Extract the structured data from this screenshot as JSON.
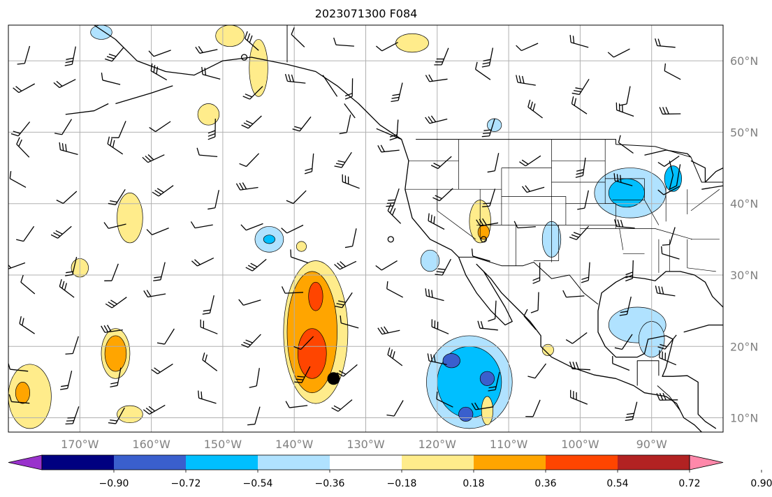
{
  "title": "2023071300 F084",
  "map": {
    "lon_range": [
      -180,
      -80
    ],
    "lat_range": [
      8,
      65
    ],
    "gridlines": true,
    "lon_ticks": [
      {
        "value": -170,
        "label": "170°W"
      },
      {
        "value": -160,
        "label": "160°W"
      },
      {
        "value": -150,
        "label": "150°W"
      },
      {
        "value": -140,
        "label": "140°W"
      },
      {
        "value": -130,
        "label": "130°W"
      },
      {
        "value": -120,
        "label": "120°W"
      },
      {
        "value": -110,
        "label": "110°W"
      },
      {
        "value": -100,
        "label": "100°W"
      },
      {
        "value": -90,
        "label": "90°W"
      }
    ],
    "lat_ticks": [
      {
        "value": 10,
        "label": "10°N"
      },
      {
        "value": 20,
        "label": "20°N"
      },
      {
        "value": 30,
        "label": "30°N"
      },
      {
        "value": 40,
        "label": "40°N"
      },
      {
        "value": 50,
        "label": "50°N"
      },
      {
        "value": 60,
        "label": "60°N"
      }
    ],
    "marker": {
      "lon": -134.5,
      "lat": 15.5,
      "color": "#000000"
    }
  },
  "colorbar": {
    "labels": [
      "−0.90",
      "−0.72",
      "−0.54",
      "−0.36",
      "−0.18",
      "0.18",
      "0.36",
      "0.54",
      "0.72",
      "0.90"
    ],
    "colors": [
      "#9932cc",
      "#000080",
      "#3a5fcd",
      "#00bfff",
      "#b0e2ff",
      "#ffffff",
      "#ffec8b",
      "#ffa500",
      "#ff4500",
      "#b22222",
      "#ff88aa"
    ]
  },
  "fields": [
    {
      "lon": -137,
      "lat": 22,
      "rx": 4.5,
      "ry": 10,
      "level": 6
    },
    {
      "lon": -137.5,
      "lat": 22,
      "rx": 3.5,
      "ry": 8.5,
      "level": 7
    },
    {
      "lon": -137.5,
      "lat": 19,
      "rx": 2,
      "ry": 3.5,
      "level": 8
    },
    {
      "lon": -137,
      "lat": 27,
      "rx": 1,
      "ry": 2,
      "level": 8
    },
    {
      "lon": -115.5,
      "lat": 15,
      "rx": 6,
      "ry": 6.5,
      "level": 4
    },
    {
      "lon": -115.5,
      "lat": 15,
      "rx": 4.5,
      "ry": 5,
      "level": 3
    },
    {
      "lon": -118,
      "lat": 18,
      "rx": 1.2,
      "ry": 1,
      "level": 2
    },
    {
      "lon": -113,
      "lat": 15.5,
      "rx": 1,
      "ry": 1,
      "level": 2
    },
    {
      "lon": -116,
      "lat": 10.5,
      "rx": 1,
      "ry": 1,
      "level": 2
    },
    {
      "lon": -93,
      "lat": 41.5,
      "rx": 5,
      "ry": 3.5,
      "level": 4
    },
    {
      "lon": -93.5,
      "lat": 41.5,
      "rx": 2.5,
      "ry": 2,
      "level": 3
    },
    {
      "lon": -87,
      "lat": 43.5,
      "rx": 1.2,
      "ry": 1.8,
      "level": 3
    },
    {
      "lon": -92,
      "lat": 23,
      "rx": 4,
      "ry": 2.5,
      "level": 4
    },
    {
      "lon": -90,
      "lat": 21,
      "rx": 1.8,
      "ry": 2.5,
      "level": 4
    },
    {
      "lon": -165,
      "lat": 19,
      "rx": 2,
      "ry": 3.5,
      "level": 6
    },
    {
      "lon": -165,
      "lat": 19,
      "rx": 1.5,
      "ry": 2.5,
      "level": 7
    },
    {
      "lon": -177,
      "lat": 13,
      "rx": 3,
      "ry": 4.5,
      "level": 6
    },
    {
      "lon": -178,
      "lat": 13.5,
      "rx": 1,
      "ry": 1.5,
      "level": 7
    },
    {
      "lon": -163,
      "lat": 38,
      "rx": 1.8,
      "ry": 3.5,
      "level": 6
    },
    {
      "lon": -170,
      "lat": 31,
      "rx": 1.2,
      "ry": 1.3,
      "level": 6
    },
    {
      "lon": -163,
      "lat": 10.5,
      "rx": 1.8,
      "ry": 1.2,
      "level": 6
    },
    {
      "lon": -145,
      "lat": 59,
      "rx": 1.3,
      "ry": 4,
      "level": 6
    },
    {
      "lon": -152,
      "lat": 52.5,
      "rx": 1.5,
      "ry": 1.5,
      "level": 6
    },
    {
      "lon": -149,
      "lat": 63.5,
      "rx": 2,
      "ry": 1.5,
      "level": 6
    },
    {
      "lon": -114,
      "lat": 37.5,
      "rx": 1.5,
      "ry": 3,
      "level": 6
    },
    {
      "lon": -113.5,
      "lat": 36,
      "rx": 0.8,
      "ry": 1,
      "level": 7
    },
    {
      "lon": -104,
      "lat": 35,
      "rx": 1.3,
      "ry": 2.5,
      "level": 4
    },
    {
      "lon": -143.5,
      "lat": 35,
      "rx": 2,
      "ry": 1.8,
      "level": 4
    },
    {
      "lon": -143.5,
      "lat": 35,
      "rx": 0.8,
      "ry": 0.6,
      "level": 3
    },
    {
      "lon": -121,
      "lat": 32,
      "rx": 1.3,
      "ry": 1.5,
      "level": 4
    },
    {
      "lon": -123.5,
      "lat": 62.5,
      "rx": 2.3,
      "ry": 1.3,
      "level": 6
    },
    {
      "lon": -112,
      "lat": 51,
      "rx": 1,
      "ry": 0.9,
      "level": 4
    },
    {
      "lon": -104.5,
      "lat": 19.5,
      "rx": 0.8,
      "ry": 0.8,
      "level": 6
    },
    {
      "lon": -113,
      "lat": 11,
      "rx": 0.8,
      "ry": 2,
      "level": 6
    },
    {
      "lon": -139,
      "lat": 34,
      "rx": 0.7,
      "ry": 0.7,
      "level": 6
    },
    {
      "lon": -167,
      "lat": 64,
      "rx": 1.5,
      "ry": 1,
      "level": 4
    }
  ],
  "coast": [
    [
      [
        -168,
        65
      ],
      [
        -165,
        63
      ],
      [
        -162,
        60
      ],
      [
        -158,
        58.5
      ],
      [
        -154,
        58
      ],
      [
        -150,
        60
      ],
      [
        -146,
        60.5
      ],
      [
        -141,
        59.5
      ],
      [
        -137,
        58.5
      ],
      [
        -134,
        56.5
      ],
      [
        -131,
        54
      ],
      [
        -128,
        51
      ],
      [
        -125,
        49
      ],
      [
        -124,
        46
      ],
      [
        -124.5,
        42
      ],
      [
        -123.5,
        38
      ],
      [
        -121,
        35
      ],
      [
        -118,
        33.5
      ],
      [
        -117,
        32.5
      ],
      [
        -116,
        30
      ],
      [
        -114.5,
        27.5
      ],
      [
        -112.5,
        25
      ],
      [
        -110.5,
        23
      ],
      [
        -109.5,
        23.5
      ],
      [
        -110.5,
        25.5
      ],
      [
        -112,
        28
      ],
      [
        -113.5,
        30.5
      ],
      [
        -114.5,
        31.5
      ],
      [
        -112.5,
        29.5
      ],
      [
        -111,
        27.5
      ],
      [
        -109,
        25.5
      ],
      [
        -107,
        23.5
      ],
      [
        -105.5,
        21.5
      ],
      [
        -105.5,
        20
      ],
      [
        -104,
        18.5
      ],
      [
        -101,
        17
      ],
      [
        -98,
        16
      ],
      [
        -95,
        15.5
      ],
      [
        -92.5,
        14.5
      ],
      [
        -91,
        13.5
      ],
      [
        -88,
        13
      ],
      [
        -86.5,
        12
      ],
      [
        -85.5,
        10
      ],
      [
        -84,
        9
      ],
      [
        -83,
        8
      ]
    ],
    [
      [
        -80,
        25.5
      ],
      [
        -81.5,
        27
      ],
      [
        -82.5,
        29
      ],
      [
        -84,
        30
      ],
      [
        -86,
        30.5
      ],
      [
        -88,
        30.5
      ],
      [
        -89.5,
        29.2
      ],
      [
        -91,
        29.5
      ],
      [
        -93.5,
        29.8
      ],
      [
        -95,
        29
      ],
      [
        -97,
        27.5
      ],
      [
        -97.5,
        25
      ],
      [
        -97.5,
        22
      ],
      [
        -96.5,
        20
      ],
      [
        -95,
        18.5
      ],
      [
        -92,
        18.5
      ],
      [
        -91,
        19
      ],
      [
        -90.5,
        21
      ],
      [
        -88,
        21.5
      ],
      [
        -87,
        21
      ],
      [
        -87.5,
        19
      ],
      [
        -88,
        17
      ],
      [
        -88.5,
        15.8
      ],
      [
        -87,
        15.8
      ],
      [
        -85,
        15.9
      ],
      [
        -83.5,
        15
      ],
      [
        -83.5,
        12
      ],
      [
        -83.5,
        10.5
      ],
      [
        -82.5,
        9.5
      ],
      [
        -81,
        8.5
      ]
    ],
    [
      [
        -91,
        46.8
      ],
      [
        -88,
        47.5
      ],
      [
        -85,
        47
      ],
      [
        -84.5,
        46.5
      ]
    ],
    [
      [
        -87.5,
        46
      ],
      [
        -87,
        44
      ],
      [
        -87.5,
        42
      ],
      [
        -86.5,
        42.5
      ],
      [
        -86,
        45.5
      ]
    ],
    [
      [
        -84.5,
        46
      ],
      [
        -82.5,
        45
      ],
      [
        -82.5,
        43
      ],
      [
        -81,
        44.5
      ],
      [
        -80,
        45
      ]
    ],
    [
      [
        -83,
        42
      ],
      [
        -80,
        42.5
      ]
    ],
    [
      [
        -85.5,
        22
      ],
      [
        -82,
        23
      ],
      [
        -80,
        23
      ]
    ],
    [
      [
        -165,
        54
      ],
      [
        -160,
        55.5
      ],
      [
        -157,
        56.5
      ]
    ],
    [
      [
        -172,
        52.5
      ],
      [
        -168,
        53
      ],
      [
        -166,
        54
      ]
    ],
    [
      [
        -136,
        58
      ],
      [
        -134,
        55
      ]
    ],
    [
      [
        -133,
        54
      ],
      [
        -131.5,
        52
      ]
    ],
    [
      [
        -128.5,
        50.5
      ],
      [
        -125,
        49
      ]
    ]
  ],
  "borders": [
    [
      [
        -141,
        65
      ],
      [
        -141,
        59.8
      ]
    ],
    [
      [
        -123,
        49
      ],
      [
        -95,
        49
      ],
      [
        -95,
        48.3
      ],
      [
        -89.5,
        48
      ],
      [
        -84.5,
        46.5
      ],
      [
        -83,
        43
      ],
      [
        -79,
        43
      ]
    ],
    [
      [
        -117,
        32.5
      ],
      [
        -114.8,
        32.5
      ],
      [
        -111,
        31.3
      ],
      [
        -108,
        31.3
      ],
      [
        -106.5,
        31.8
      ],
      [
        -104,
        29.5
      ],
      [
        -101.5,
        30
      ],
      [
        -99.5,
        27.5
      ],
      [
        -97.5,
        25.9
      ]
    ],
    [
      [
        -92,
        14.5
      ],
      [
        -92,
        18
      ],
      [
        -91,
        18
      ],
      [
        -89,
        18
      ],
      [
        -89,
        15.9
      ]
    ],
    [
      [
        -89.2,
        14.5
      ],
      [
        -87.5,
        13
      ],
      [
        -86,
        11
      ]
    ]
  ],
  "states": [
    [
      [
        -124,
        46
      ],
      [
        -117,
        46
      ],
      [
        -117,
        49
      ]
    ],
    [
      [
        -124.5,
        42
      ],
      [
        -111,
        42
      ]
    ],
    [
      [
        -120,
        42
      ],
      [
        -120,
        39
      ],
      [
        -114.6,
        35
      ]
    ],
    [
      [
        -117,
        42
      ],
      [
        -117,
        46
      ]
    ],
    [
      [
        -114,
        42
      ],
      [
        -114,
        35
      ]
    ],
    [
      [
        -111,
        45
      ],
      [
        -111,
        37
      ],
      [
        -114.5,
        37
      ]
    ],
    [
      [
        -111,
        37
      ],
      [
        -109,
        37
      ],
      [
        -109,
        31.3
      ]
    ],
    [
      [
        -104,
        49
      ],
      [
        -104,
        31.8
      ]
    ],
    [
      [
        -111,
        45
      ],
      [
        -104,
        45
      ]
    ],
    [
      [
        -111,
        41
      ],
      [
        -102,
        41
      ],
      [
        -102,
        37
      ]
    ],
    [
      [
        -109,
        37
      ],
      [
        -94.5,
        37
      ]
    ],
    [
      [
        -103,
        37
      ],
      [
        -103,
        32
      ],
      [
        -106.5,
        32
      ]
    ],
    [
      [
        -104,
        46
      ],
      [
        -96.5,
        46
      ]
    ],
    [
      [
        -104,
        43
      ],
      [
        -96.5,
        43
      ]
    ],
    [
      [
        -96.5,
        49
      ],
      [
        -96.5,
        40
      ],
      [
        -95,
        40
      ],
      [
        -95,
        36.5
      ]
    ],
    [
      [
        -102,
        40
      ],
      [
        -95,
        40
      ]
    ],
    [
      [
        -100,
        36.5
      ],
      [
        -94.5,
        36.5
      ],
      [
        -94,
        33.5
      ]
    ],
    [
      [
        -96.5,
        43.5
      ],
      [
        -91,
        43.5
      ]
    ],
    [
      [
        -95.5,
        40.5
      ],
      [
        -91,
        40.5
      ],
      [
        -89,
        37
      ]
    ],
    [
      [
        -94.5,
        36.5
      ],
      [
        -89.5,
        36.5
      ],
      [
        -84.3,
        35
      ]
    ],
    [
      [
        -91,
        33
      ],
      [
        -94,
        33
      ]
    ],
    [
      [
        -91,
        43.5
      ],
      [
        -91,
        40.5
      ]
    ],
    [
      [
        -88,
        42.5
      ],
      [
        -88,
        37.5
      ]
    ],
    [
      [
        -85,
        42
      ],
      [
        -85,
        38.5
      ]
    ],
    [
      [
        -89,
        35
      ],
      [
        -89,
        30.3
      ]
    ],
    [
      [
        -87.5,
        35
      ],
      [
        -87.5,
        30.5
      ]
    ],
    [
      [
        -85,
        35
      ],
      [
        -85,
        31
      ],
      [
        -81,
        30.5
      ]
    ],
    [
      [
        -84.5,
        39
      ],
      [
        -80.5,
        42
      ]
    ],
    [
      [
        -80.5,
        35
      ],
      [
        -84.5,
        35
      ]
    ]
  ],
  "ring_markers": [
    {
      "lon": -147,
      "lat": 60.5
    },
    {
      "lon": -126.5,
      "lat": 35
    },
    {
      "lon": -113.5,
      "lat": 35
    }
  ]
}
